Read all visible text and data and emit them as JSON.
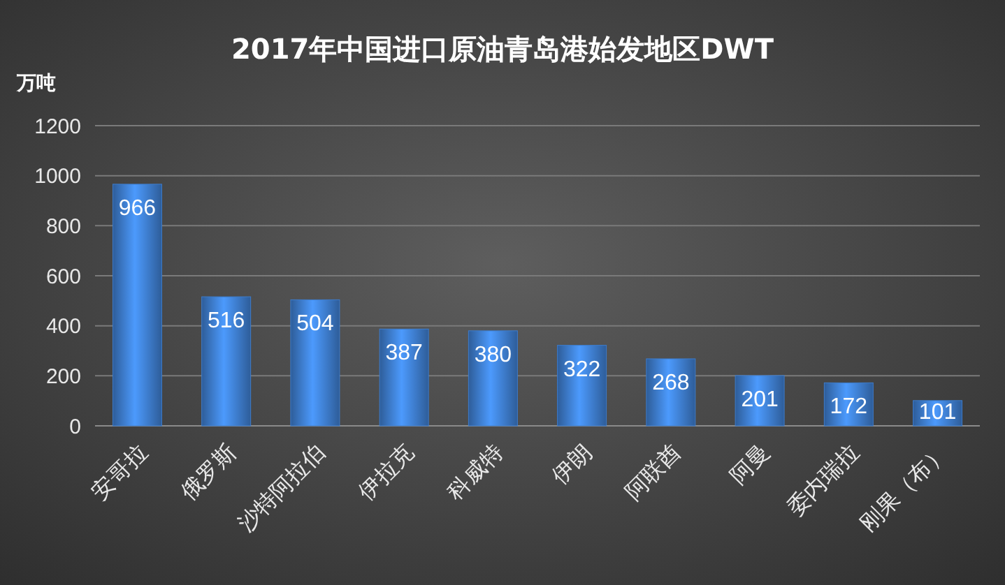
{
  "chart_data": {
    "type": "bar",
    "title": "2017年中国进口原油青岛港始发地区DWT",
    "ylabel": "万吨",
    "categories": [
      "安哥拉",
      "俄罗斯",
      "沙特阿拉伯",
      "伊拉克",
      "科威特",
      "伊朗",
      "阿联酋",
      "阿曼",
      "委内瑞拉",
      "刚果（布）"
    ],
    "values": [
      966,
      516,
      504,
      387,
      380,
      322,
      268,
      201,
      172,
      101
    ],
    "color": "#3d7ccc",
    "ylim": [
      0,
      1200
    ],
    "yticks": [
      0,
      200,
      400,
      600,
      800,
      1000,
      1200
    ],
    "grid": "y",
    "data_labels": true
  }
}
